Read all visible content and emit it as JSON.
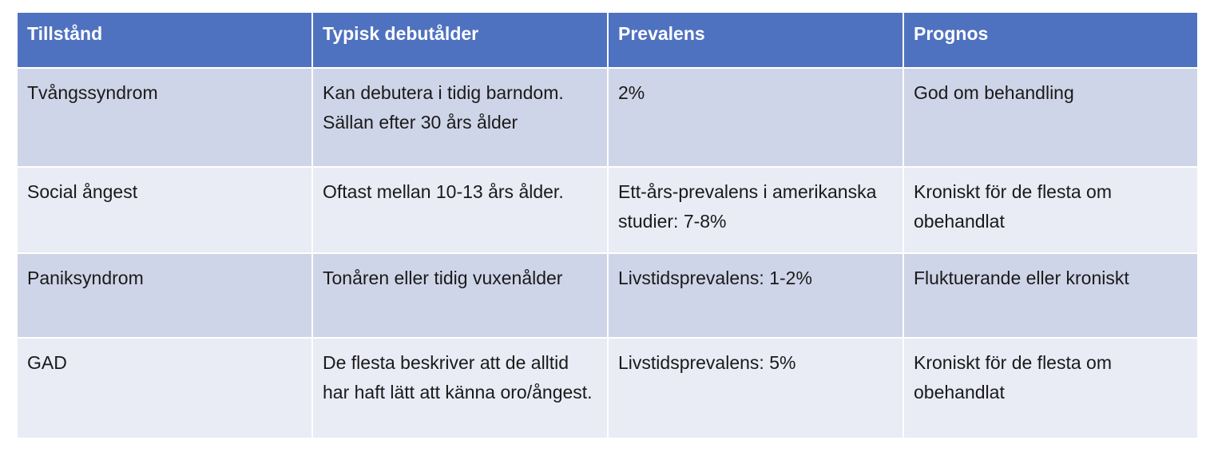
{
  "table": {
    "headers": [
      "Tillstånd",
      "Typisk debutålder",
      "Prevalens",
      "Prognos"
    ],
    "rows": [
      [
        "Tvångssyndrom",
        "Kan debutera i tidig barndom. Sällan efter 30 års ålder",
        "2%",
        "God om behandling"
      ],
      [
        "Social ångest",
        "Oftast mellan 10-13 års ålder.",
        "Ett-års-prevalens i amerikanska studier: 7-8%",
        "Kroniskt för de flesta om obehandlat"
      ],
      [
        "Paniksyndrom",
        "Tonåren eller tidig vuxenålder",
        "Livstidsprevalens: 1-2%",
        "Fluktuerande eller kroniskt"
      ],
      [
        "GAD",
        "De flesta beskriver att de alltid har haft lätt att känna oro/ångest.",
        "Livstidsprevalens: 5%",
        "Kroniskt för de flesta om obehandlat"
      ]
    ]
  },
  "colors": {
    "header_bg": "#4f72c0",
    "row_odd_bg": "#cfd5e8",
    "row_even_bg": "#e9ebf5",
    "header_text": "#ffffff",
    "body_text": "#1a1a1a"
  }
}
